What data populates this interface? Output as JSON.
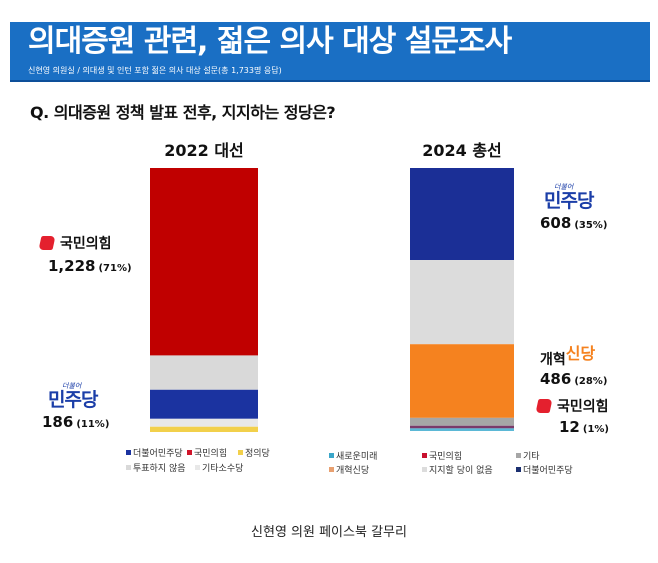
{
  "banner": {
    "title": "의대증원 관련, 젊은 의사 대상 설문조사",
    "subtitle": "신현영 의원실 / 의대생 및 인턴 포함 젊은 의사 대상 설문(총 1,733명 응답)"
  },
  "question": "Q. 의대증원 정책 발표 전후, 지지하는 정당은?",
  "caption": "신현영 의원 페이스북 갈무리",
  "labels": {
    "ppp": "국민의힘",
    "dem_small": "더불어",
    "dem": "민주당",
    "reform_a": "개혁",
    "reform_b": "신당",
    "left_ppp_count": "1,228",
    "left_ppp_pct": "(71%)",
    "left_dem_count": "186",
    "left_dem_pct": "(11%)",
    "right_dem_count": "608",
    "right_dem_pct": "(35%)",
    "right_reform_count": "486",
    "right_reform_pct": "(28%)",
    "right_ppp_count": "12",
    "right_ppp_pct": "(1%)"
  },
  "chart_data": [
    {
      "type": "bar",
      "stacked": true,
      "title": "2022 대선",
      "unit": "%",
      "series": [
        {
          "name": "국민의힘",
          "value": 71,
          "color": "#c00000"
        },
        {
          "name": "투표하지 않음",
          "value": 13,
          "color": "#d9d9d9"
        },
        {
          "name": "더불어민주당",
          "value": 11,
          "color": "#1b33a0"
        },
        {
          "name": "기타소수당",
          "value": 3,
          "color": "#e8e8e8"
        },
        {
          "name": "정의당",
          "value": 2,
          "color": "#f2d04b"
        }
      ],
      "legend": [
        {
          "label": "더불어민주당",
          "color": "#1b33a0"
        },
        {
          "label": "국민의힘",
          "color": "#d0142a"
        },
        {
          "label": "정의당",
          "color": "#f2d04b"
        },
        {
          "label": "투표하지 않음",
          "color": "#d9d9d9"
        },
        {
          "label": "기타소수당",
          "color": "#e8e8e8"
        }
      ]
    },
    {
      "type": "bar",
      "stacked": true,
      "title": "2024 총선",
      "unit": "%",
      "series": [
        {
          "name": "더불어민주당",
          "value": 35,
          "color": "#1b2f96"
        },
        {
          "name": "지지할 당이 없음",
          "value": 32,
          "color": "#dcdcdc"
        },
        {
          "name": "개혁신당",
          "value": 28,
          "color": "#f5821f"
        },
        {
          "name": "기타",
          "value": 3,
          "color": "#a6a6a6"
        },
        {
          "name": "국민의힘",
          "value": 1,
          "color": "#7a3a6a"
        },
        {
          "name": "새로운미래",
          "value": 1,
          "color": "#5bb8d6"
        }
      ],
      "legend": [
        {
          "label": "새로운미래",
          "color": "#3aa6c9"
        },
        {
          "label": "국민의힘",
          "color": "#c8102e"
        },
        {
          "label": "기타",
          "color": "#a6a6a6"
        },
        {
          "label": "개혁신당",
          "color": "#e8a070"
        },
        {
          "label": "지지할 당이 없음",
          "color": "#dcdcdc"
        },
        {
          "label": "더불어민주당",
          "color": "#1b2f70"
        }
      ]
    }
  ]
}
